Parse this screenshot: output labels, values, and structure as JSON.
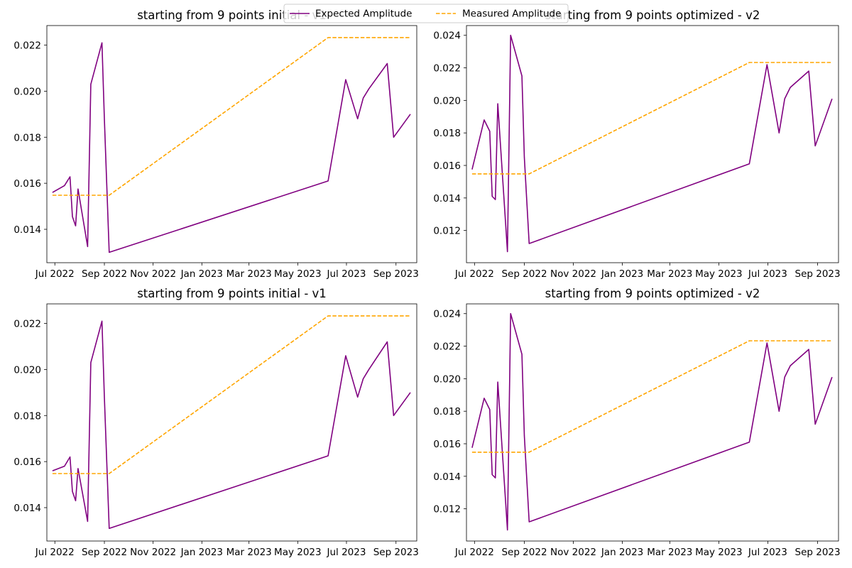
{
  "legend": {
    "entries": [
      {
        "label": "Expected Amplitude",
        "color": "#800080",
        "style": "solid"
      },
      {
        "label": "Measured Amplitude",
        "color": "#FFA500",
        "style": "dashed"
      }
    ],
    "placement": "top-center"
  },
  "chart_data": [
    {
      "type": "line",
      "title": "starting from 9 points initial - v1",
      "xlabel": "",
      "ylabel": "",
      "x_tick_labels": [
        "Jul 2022",
        "Sep 2022",
        "Nov 2022",
        "Jan 2023",
        "Mar 2023",
        "May 2023",
        "Jul 2023",
        "Sep 2023"
      ],
      "x_ticks": [
        "2022-07-01",
        "2022-09-01",
        "2022-11-01",
        "2023-01-01",
        "2023-03-01",
        "2023-05-01",
        "2023-07-01",
        "2023-09-01"
      ],
      "xlim": [
        "2022-06-21",
        "2023-09-27"
      ],
      "y_tick_labels": [
        "0.014",
        "0.016",
        "0.018",
        "0.020",
        "0.022"
      ],
      "y_ticks": [
        0.014,
        0.016,
        0.018,
        0.02,
        0.022
      ],
      "ylim": [
        0.01255,
        0.02285
      ],
      "grid": false,
      "series": [
        {
          "name": "Expected Amplitude",
          "color": "#800080",
          "style": "solid",
          "x": [
            "2022-06-28",
            "2022-07-13",
            "2022-07-20",
            "2022-07-23",
            "2022-07-27",
            "2022-07-30",
            "2022-08-11",
            "2022-08-15",
            "2022-08-29",
            "2022-09-01",
            "2022-09-07",
            "2023-06-08",
            "2023-06-30",
            "2023-07-15",
            "2023-07-22",
            "2023-07-29",
            "2023-08-21",
            "2023-08-29",
            "2023-09-19"
          ],
          "y": [
            0.0156,
            0.0159,
            0.01628,
            0.01455,
            0.01415,
            0.01575,
            0.01325,
            0.0203,
            0.0221,
            0.0188,
            0.013,
            0.0161,
            0.0205,
            0.0188,
            0.0197,
            0.0201,
            0.0212,
            0.018,
            0.019
          ]
        },
        {
          "name": "Measured Amplitude",
          "color": "#FFA500",
          "style": "dashed",
          "x": [
            "2022-06-28",
            "2022-09-07",
            "2023-06-08",
            "2023-09-19"
          ],
          "y": [
            0.01548,
            0.01548,
            0.02233,
            0.02233
          ]
        }
      ]
    },
    {
      "type": "line",
      "title": "starting from 9 points optimized - v2",
      "xlabel": "",
      "ylabel": "",
      "x_tick_labels": [
        "Jul 2022",
        "Sep 2022",
        "Nov 2022",
        "Jan 2023",
        "Mar 2023",
        "May 2023",
        "Jul 2023",
        "Sep 2023"
      ],
      "x_ticks": [
        "2022-07-01",
        "2022-09-01",
        "2022-11-01",
        "2023-01-01",
        "2023-03-01",
        "2023-05-01",
        "2023-07-01",
        "2023-09-01"
      ],
      "xlim": [
        "2022-06-21",
        "2023-09-27"
      ],
      "y_tick_labels": [
        "0.012",
        "0.014",
        "0.016",
        "0.018",
        "0.020",
        "0.022",
        "0.024"
      ],
      "y_ticks": [
        0.012,
        0.014,
        0.016,
        0.018,
        0.02,
        0.022,
        0.024
      ],
      "ylim": [
        0.01002,
        0.0246
      ],
      "grid": false,
      "series": [
        {
          "name": "Expected Amplitude",
          "color": "#800080",
          "style": "solid",
          "x": [
            "2022-06-28",
            "2022-07-13",
            "2022-07-20",
            "2022-07-23",
            "2022-07-27",
            "2022-07-30",
            "2022-08-11",
            "2022-08-15",
            "2022-08-29",
            "2022-09-01",
            "2022-09-07",
            "2023-06-08",
            "2023-06-30",
            "2023-07-15",
            "2023-07-22",
            "2023-07-29",
            "2023-08-21",
            "2023-08-29",
            "2023-09-19"
          ],
          "y": [
            0.01575,
            0.0188,
            0.0181,
            0.0141,
            0.0139,
            0.0198,
            0.0107,
            0.024,
            0.0215,
            0.0165,
            0.0112,
            0.0161,
            0.0222,
            0.018,
            0.0201,
            0.0208,
            0.0218,
            0.0172,
            0.0201
          ]
        },
        {
          "name": "Measured Amplitude",
          "color": "#FFA500",
          "style": "dashed",
          "x": [
            "2022-06-28",
            "2022-09-07",
            "2023-06-08",
            "2023-09-19"
          ],
          "y": [
            0.01548,
            0.01548,
            0.02233,
            0.02233
          ]
        }
      ]
    },
    {
      "type": "line",
      "title": "starting from 9 points initial - v1",
      "xlabel": "",
      "ylabel": "",
      "x_tick_labels": [
        "Jul 2022",
        "Sep 2022",
        "Nov 2022",
        "Jan 2023",
        "Mar 2023",
        "May 2023",
        "Jul 2023",
        "Sep 2023"
      ],
      "x_ticks": [
        "2022-07-01",
        "2022-09-01",
        "2022-11-01",
        "2023-01-01",
        "2023-03-01",
        "2023-05-01",
        "2023-07-01",
        "2023-09-01"
      ],
      "xlim": [
        "2022-06-21",
        "2023-09-27"
      ],
      "y_tick_labels": [
        "0.014",
        "0.016",
        "0.018",
        "0.020",
        "0.022"
      ],
      "y_ticks": [
        0.014,
        0.016,
        0.018,
        0.02,
        0.022
      ],
      "ylim": [
        0.01255,
        0.02285
      ],
      "grid": false,
      "series": [
        {
          "name": "Expected Amplitude",
          "color": "#800080",
          "style": "solid",
          "x": [
            "2022-06-28",
            "2022-07-13",
            "2022-07-20",
            "2022-07-23",
            "2022-07-27",
            "2022-07-30",
            "2022-08-11",
            "2022-08-15",
            "2022-08-29",
            "2022-09-01",
            "2022-09-07",
            "2023-06-08",
            "2023-06-30",
            "2023-07-15",
            "2023-07-22",
            "2023-07-29",
            "2023-08-21",
            "2023-08-29",
            "2023-09-19"
          ],
          "y": [
            0.0156,
            0.0158,
            0.0162,
            0.0147,
            0.0143,
            0.0157,
            0.0134,
            0.0203,
            0.0221,
            0.0188,
            0.0131,
            0.01625,
            0.0206,
            0.0188,
            0.0196,
            0.02,
            0.0212,
            0.018,
            0.019
          ]
        },
        {
          "name": "Measured Amplitude",
          "color": "#FFA500",
          "style": "dashed",
          "x": [
            "2022-06-28",
            "2022-09-07",
            "2023-06-08",
            "2023-09-19"
          ],
          "y": [
            0.01548,
            0.01548,
            0.02233,
            0.02233
          ]
        }
      ]
    },
    {
      "type": "line",
      "title": "starting from 9 points optimized - v2",
      "xlabel": "",
      "ylabel": "",
      "x_tick_labels": [
        "Jul 2022",
        "Sep 2022",
        "Nov 2022",
        "Jan 2023",
        "Mar 2023",
        "May 2023",
        "Jul 2023",
        "Sep 2023"
      ],
      "x_ticks": [
        "2022-07-01",
        "2022-09-01",
        "2022-11-01",
        "2023-01-01",
        "2023-03-01",
        "2023-05-01",
        "2023-07-01",
        "2023-09-01"
      ],
      "xlim": [
        "2022-06-21",
        "2023-09-27"
      ],
      "y_tick_labels": [
        "0.012",
        "0.014",
        "0.016",
        "0.018",
        "0.020",
        "0.022",
        "0.024"
      ],
      "y_ticks": [
        0.012,
        0.014,
        0.016,
        0.018,
        0.02,
        0.022,
        0.024
      ],
      "ylim": [
        0.01002,
        0.0246
      ],
      "grid": false,
      "series": [
        {
          "name": "Expected Amplitude",
          "color": "#800080",
          "style": "solid",
          "x": [
            "2022-06-28",
            "2022-07-13",
            "2022-07-20",
            "2022-07-23",
            "2022-07-27",
            "2022-07-30",
            "2022-08-11",
            "2022-08-15",
            "2022-08-29",
            "2022-09-01",
            "2022-09-07",
            "2023-06-08",
            "2023-06-30",
            "2023-07-15",
            "2023-07-22",
            "2023-07-29",
            "2023-08-21",
            "2023-08-29",
            "2023-09-19"
          ],
          "y": [
            0.01575,
            0.0188,
            0.0181,
            0.0141,
            0.0139,
            0.0198,
            0.0107,
            0.024,
            0.0215,
            0.0165,
            0.0112,
            0.0161,
            0.0222,
            0.018,
            0.0201,
            0.0208,
            0.0218,
            0.0172,
            0.0201
          ]
        },
        {
          "name": "Measured Amplitude",
          "color": "#FFA500",
          "style": "dashed",
          "x": [
            "2022-06-28",
            "2022-09-07",
            "2023-06-08",
            "2023-09-19"
          ],
          "y": [
            0.01548,
            0.01548,
            0.02233,
            0.02233
          ]
        }
      ]
    }
  ]
}
